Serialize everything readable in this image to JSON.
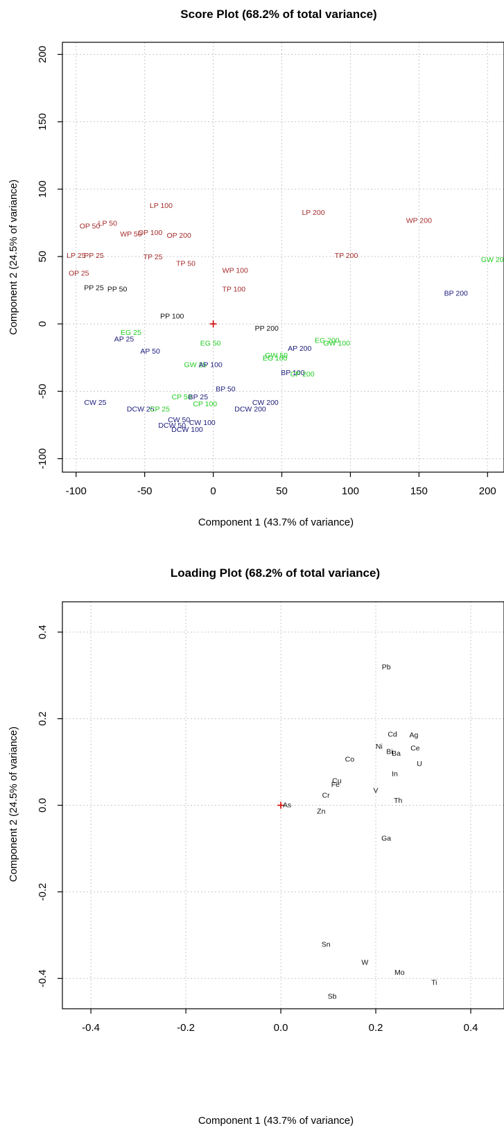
{
  "chart_data": [
    {
      "id": "score",
      "type": "scatter",
      "title": "Score Plot (68.2% of total variance)",
      "xlabel": "Component 1 (43.7% of variance)",
      "ylabel": "Component 2 (24.5% of variance)",
      "xlim": [
        -110,
        212
      ],
      "ylim": [
        -110,
        209
      ],
      "xticks": [
        -100,
        -50,
        0,
        50,
        100,
        150,
        200
      ],
      "yticks": [
        -100,
        -50,
        0,
        50,
        100,
        150,
        200
      ],
      "xtick_labels": [
        "-100",
        "-50",
        "0",
        "50",
        "100",
        "150",
        "200"
      ],
      "ytick_labels": [
        "-100",
        "-50",
        "0",
        "50",
        "100",
        "150",
        "200"
      ],
      "grid": true,
      "origin_marker": [
        0,
        0
      ],
      "colors": {
        "red": "#a52a2a",
        "black": "#111111",
        "navy": "#1a1a7a",
        "green": "#22cc22"
      },
      "points": [
        {
          "label": "LP 100",
          "x": -38,
          "y": 88,
          "color": "red"
        },
        {
          "label": "LP 200",
          "x": 73,
          "y": 83,
          "color": "red"
        },
        {
          "label": "WP 200",
          "x": 150,
          "y": 77,
          "color": "red"
        },
        {
          "label": "OP 50",
          "x": -90,
          "y": 73,
          "color": "red"
        },
        {
          "label": "LP 50",
          "x": -77,
          "y": 75,
          "color": "red"
        },
        {
          "label": "WP 50",
          "x": -60,
          "y": 67,
          "color": "red"
        },
        {
          "label": "OP 100",
          "x": -46,
          "y": 68,
          "color": "red"
        },
        {
          "label": "OP 200",
          "x": -25,
          "y": 66,
          "color": "red"
        },
        {
          "label": "LP 25",
          "x": -100,
          "y": 51,
          "color": "red"
        },
        {
          "label": "PP 25",
          "x": -87,
          "y": 51,
          "color": "red"
        },
        {
          "label": "TP 25",
          "x": -44,
          "y": 50,
          "color": "red"
        },
        {
          "label": "TP 200",
          "x": 97,
          "y": 51,
          "color": "red"
        },
        {
          "label": "TP 50",
          "x": -20,
          "y": 45,
          "color": "red"
        },
        {
          "label": "OP 25",
          "x": -98,
          "y": 38,
          "color": "red"
        },
        {
          "label": "WP 100",
          "x": 16,
          "y": 40,
          "color": "red"
        },
        {
          "label": "TP 100",
          "x": 15,
          "y": 26,
          "color": "red"
        },
        {
          "label": "GW 200",
          "x": 205,
          "y": 48,
          "color": "green"
        },
        {
          "label": "PP 25",
          "x": -87,
          "y": 27,
          "color": "black"
        },
        {
          "label": "PP 50",
          "x": -70,
          "y": 26,
          "color": "black"
        },
        {
          "label": "BP 200",
          "x": 177,
          "y": 23,
          "color": "navy"
        },
        {
          "label": "PP 100",
          "x": -30,
          "y": 6,
          "color": "black"
        },
        {
          "label": "PP 200",
          "x": 39,
          "y": -3,
          "color": "black"
        },
        {
          "label": "EG 25",
          "x": -60,
          "y": -6,
          "color": "green"
        },
        {
          "label": "AP 25",
          "x": -65,
          "y": -11,
          "color": "navy"
        },
        {
          "label": "EG 200",
          "x": 83,
          "y": -12,
          "color": "green"
        },
        {
          "label": "GW 100",
          "x": 90,
          "y": -14,
          "color": "green"
        },
        {
          "label": "EG 50",
          "x": -2,
          "y": -14,
          "color": "green"
        },
        {
          "label": "AP 200",
          "x": 63,
          "y": -18,
          "color": "navy"
        },
        {
          "label": "AP 50",
          "x": -46,
          "y": -20,
          "color": "navy"
        },
        {
          "label": "GW 50",
          "x": 46,
          "y": -23,
          "color": "green"
        },
        {
          "label": "EG 100",
          "x": 45,
          "y": -25,
          "color": "green"
        },
        {
          "label": "GW 25",
          "x": -13,
          "y": -30,
          "color": "green"
        },
        {
          "label": "AP 100",
          "x": -2,
          "y": -30,
          "color": "navy"
        },
        {
          "label": "BP 100",
          "x": 58,
          "y": -36,
          "color": "navy"
        },
        {
          "label": "CP 200",
          "x": 65,
          "y": -37,
          "color": "green"
        },
        {
          "label": "BP 50",
          "x": 9,
          "y": -48,
          "color": "navy"
        },
        {
          "label": "CP 50",
          "x": -23,
          "y": -54,
          "color": "green"
        },
        {
          "label": "BP 25",
          "x": -11,
          "y": -54,
          "color": "navy"
        },
        {
          "label": "CW 25",
          "x": -86,
          "y": -58,
          "color": "navy"
        },
        {
          "label": "CP 100",
          "x": -6,
          "y": -59,
          "color": "green"
        },
        {
          "label": "CW 200",
          "x": 38,
          "y": -58,
          "color": "navy"
        },
        {
          "label": "DCW 25",
          "x": -53,
          "y": -63,
          "color": "navy"
        },
        {
          "label": "CP 25",
          "x": -39,
          "y": -63,
          "color": "green"
        },
        {
          "label": "DCW 200",
          "x": 27,
          "y": -63,
          "color": "navy"
        },
        {
          "label": "CW 50",
          "x": -25,
          "y": -71,
          "color": "navy"
        },
        {
          "label": "CW 100",
          "x": -8,
          "y": -73,
          "color": "navy"
        },
        {
          "label": "DCW 50",
          "x": -30,
          "y": -75,
          "color": "navy"
        },
        {
          "label": "DCW 100",
          "x": -19,
          "y": -78,
          "color": "navy"
        }
      ]
    },
    {
      "id": "loading",
      "type": "scatter",
      "title": "Loading Plot (68.2% of total variance)",
      "xlabel": "Component 1 (43.7% of variance)",
      "ylabel": "Component 2 (24.5% of variance)",
      "xlim": [
        -0.46,
        0.47
      ],
      "ylim": [
        -0.47,
        0.47
      ],
      "xticks": [
        -0.4,
        -0.2,
        0.0,
        0.2,
        0.4
      ],
      "yticks": [
        -0.4,
        -0.2,
        0.0,
        0.2,
        0.4
      ],
      "xtick_labels": [
        "-0.4",
        "-0.2",
        "0.0",
        "0.2",
        "0.4"
      ],
      "ytick_labels": [
        "-0.4",
        "-0.2",
        "0.0",
        "0.2",
        "0.4"
      ],
      "grid": true,
      "origin_marker": [
        0,
        0
      ],
      "colors": {
        "black": "#111111"
      },
      "points": [
        {
          "label": "Pb",
          "x": 0.222,
          "y": 0.32,
          "color": "black"
        },
        {
          "label": "Cd",
          "x": 0.235,
          "y": 0.165,
          "color": "black"
        },
        {
          "label": "Ag",
          "x": 0.28,
          "y": 0.163,
          "color": "black"
        },
        {
          "label": "Ni",
          "x": 0.207,
          "y": 0.137,
          "color": "black"
        },
        {
          "label": "Ce",
          "x": 0.283,
          "y": 0.133,
          "color": "black"
        },
        {
          "label": "Bi",
          "x": 0.229,
          "y": 0.125,
          "color": "black"
        },
        {
          "label": "Ba",
          "x": 0.243,
          "y": 0.121,
          "color": "black"
        },
        {
          "label": "Co",
          "x": 0.145,
          "y": 0.107,
          "color": "black"
        },
        {
          "label": "U",
          "x": 0.292,
          "y": 0.097,
          "color": "black"
        },
        {
          "label": "In",
          "x": 0.24,
          "y": 0.074,
          "color": "black"
        },
        {
          "label": "Cu",
          "x": 0.118,
          "y": 0.058,
          "color": "black"
        },
        {
          "label": "Fe",
          "x": 0.115,
          "y": 0.049,
          "color": "black"
        },
        {
          "label": "V",
          "x": 0.2,
          "y": 0.035,
          "color": "black"
        },
        {
          "label": "Cr",
          "x": 0.095,
          "y": 0.024,
          "color": "black"
        },
        {
          "label": "Th",
          "x": 0.247,
          "y": 0.012,
          "color": "black"
        },
        {
          "label": "As",
          "x": 0.013,
          "y": 0.002,
          "color": "black"
        },
        {
          "label": "Zn",
          "x": 0.085,
          "y": -0.013,
          "color": "black"
        },
        {
          "label": "Ga",
          "x": 0.222,
          "y": -0.075,
          "color": "black"
        },
        {
          "label": "Sn",
          "x": 0.095,
          "y": -0.32,
          "color": "black"
        },
        {
          "label": "W",
          "x": 0.177,
          "y": -0.362,
          "color": "black"
        },
        {
          "label": "Mo",
          "x": 0.25,
          "y": -0.385,
          "color": "black"
        },
        {
          "label": "Ti",
          "x": 0.323,
          "y": -0.408,
          "color": "black"
        },
        {
          "label": "Sb",
          "x": 0.108,
          "y": -0.44,
          "color": "black"
        }
      ]
    }
  ]
}
